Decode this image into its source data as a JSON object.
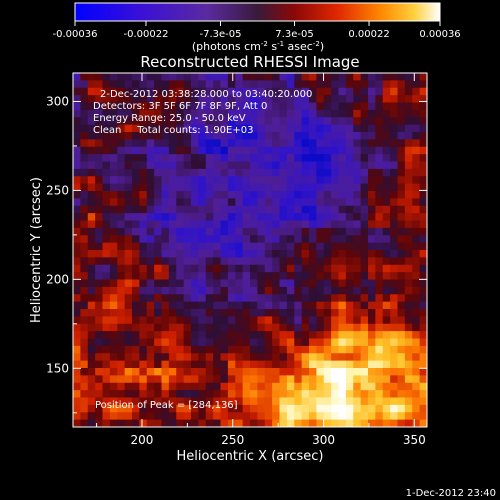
{
  "chart_data": {
    "type": "heatmap",
    "title": "Reconstructed RHESSI Image",
    "xlabel": "Heliocentric X (arcsec)",
    "ylabel": "Heliocentric Y (arcsec)",
    "xlim": [
      162,
      357
    ],
    "ylim": [
      117,
      316
    ],
    "x_ticks": [
      200,
      250,
      300,
      350
    ],
    "y_ticks": [
      150,
      200,
      250,
      300
    ],
    "colorbar": {
      "range": [
        -0.00036,
        0.00036
      ],
      "tick_labels": [
        "-0.00036",
        "-0.00022",
        "-7.3e-05",
        "7.3e-05",
        "0.00022",
        "0.00036"
      ],
      "tick_values": [
        -0.00036,
        -0.00022,
        -7.3e-05,
        7.3e-05,
        0.00022,
        0.00036
      ],
      "unit_main": "(photons cm",
      "unit_exp1": "-2",
      "unit_s": " s",
      "unit_exp2": "-1",
      "unit_asec": " asec",
      "unit_exp3": "-2",
      "unit_close": ")"
    },
    "annotations": [
      "2-Dec-2012 03:38:28.000 to 03:40:20.000",
      "Detectors: 3F 5F 6F 7F 8F 9F, Att 0",
      "Energy Range: 25.0 - 50.0 keV",
      "Clean     Total counts: 1.90E+03"
    ],
    "peak_label": "Position of Peak = [284,136]",
    "peak": [
      284,
      136
    ]
  },
  "footer": {
    "timestamp": "1-Dec-2012 23:40"
  }
}
